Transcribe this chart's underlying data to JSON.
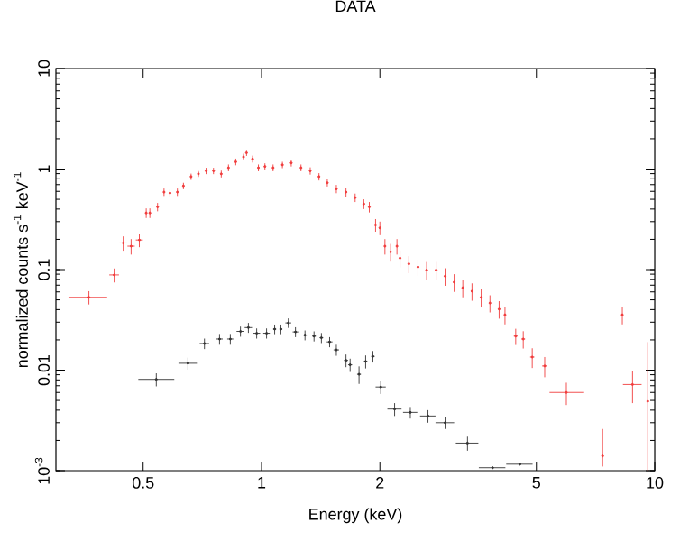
{
  "chart_data": {
    "type": "scatter",
    "title": "DATA",
    "xlabel": "Energy (keV)",
    "ylabel": "normalized counts s$^{-1}$ keV$^{-1}$",
    "log": "xy",
    "xlim": [
      0.3,
      10
    ],
    "ylim": [
      0.001,
      10
    ],
    "xticks": [
      0.5,
      1,
      2,
      5,
      10
    ],
    "yticks": [
      {
        "value": 0.001,
        "label": "10$^{-3}$"
      },
      0.01,
      0.1,
      1,
      10
    ],
    "grid": false,
    "series": [
      {
        "color": "#f03c3c",
        "x": [
          0.364,
          0.422,
          0.445,
          0.466,
          0.489,
          0.509,
          0.52,
          0.544,
          0.565,
          0.585,
          0.611,
          0.633,
          0.662,
          0.691,
          0.723,
          0.755,
          0.79,
          0.824,
          0.86,
          0.9,
          0.916,
          0.949,
          0.982,
          1.02,
          1.07,
          1.13,
          1.19,
          1.26,
          1.33,
          1.4,
          1.47,
          1.55,
          1.64,
          1.73,
          1.82,
          1.88,
          1.95,
          2.0,
          2.06,
          2.13,
          2.21,
          2.25,
          2.37,
          2.5,
          2.63,
          2.78,
          2.93,
          3.09,
          3.25,
          3.43,
          3.62,
          3.81,
          4.02,
          4.16,
          4.43,
          4.63,
          4.88,
          5.25,
          5.96,
          7.37,
          8.27,
          8.78,
          9.6
        ],
        "values": [
          0.053,
          0.0885,
          0.184,
          0.171,
          0.197,
          0.366,
          0.366,
          0.42,
          0.59,
          0.577,
          0.59,
          0.68,
          0.84,
          0.895,
          0.96,
          0.96,
          0.895,
          1.03,
          1.18,
          1.32,
          1.45,
          1.26,
          1.03,
          1.06,
          1.03,
          1.1,
          1.15,
          1.03,
          0.96,
          0.84,
          0.73,
          0.635,
          0.59,
          0.52,
          0.45,
          0.42,
          0.278,
          0.26,
          0.171,
          0.15,
          0.171,
          0.13,
          0.114,
          0.106,
          0.099,
          0.099,
          0.086,
          0.075,
          0.066,
          0.061,
          0.053,
          0.0465,
          0.0405,
          0.0355,
          0.0218,
          0.0204,
          0.0135,
          0.011,
          0.006,
          0.0014,
          0.0355,
          0.0072,
          0.0049
        ],
        "xerrors": [
          [
            0.323,
            0.405
          ],
          0.012,
          0.01,
          0.01,
          0.01,
          null,
          null,
          null,
          null,
          null,
          null,
          null,
          null,
          null,
          null,
          null,
          null,
          null,
          null,
          null,
          null,
          null,
          null,
          null,
          null,
          null,
          null,
          null,
          null,
          null,
          null,
          null,
          null,
          null,
          null,
          null,
          null,
          null,
          null,
          null,
          null,
          null,
          null,
          null,
          null,
          null,
          null,
          null,
          null,
          null,
          null,
          null,
          null,
          null,
          0.05,
          0.05,
          0.06,
          0.08,
          [
            5.4,
            6.58
          ],
          null,
          null,
          [
            8.3,
            9.26
          ],
          null
        ],
        "errors": [
          0.008,
          0.014,
          0.03,
          0.03,
          0.03,
          0.04,
          0.04,
          0.04,
          0.05,
          0.05,
          0.05,
          0.05,
          0.06,
          0.06,
          0.07,
          0.07,
          0.07,
          0.08,
          0.09,
          0.1,
          0.1,
          0.1,
          0.08,
          0.08,
          0.08,
          0.08,
          0.09,
          0.08,
          0.08,
          0.07,
          0.06,
          0.06,
          0.06,
          0.05,
          0.05,
          0.05,
          0.04,
          0.04,
          0.03,
          0.03,
          0.03,
          0.025,
          0.022,
          0.02,
          0.02,
          0.02,
          0.017,
          0.015,
          0.013,
          0.012,
          0.011,
          0.009,
          0.008,
          0.007,
          0.004,
          0.004,
          0.003,
          0.0025,
          0.0015,
          [
            0.0011,
            0.0026
          ],
          0.007,
          0.0025,
          [
            0.001,
            0.019
          ]
        ]
      },
      {
        "color": "#333333",
        "x": [
          0.54,
          0.65,
          0.716,
          0.782,
          0.833,
          0.884,
          0.926,
          0.972,
          1.03,
          1.08,
          1.12,
          1.17,
          1.22,
          1.29,
          1.36,
          1.42,
          1.49,
          1.55,
          1.64,
          1.68,
          1.77,
          1.84,
          1.92,
          2.01,
          2.18,
          2.39,
          2.65,
          2.93,
          3.34,
          3.87,
          4.54
        ],
        "values": [
          0.0081,
          0.0117,
          0.0184,
          0.0204,
          0.0204,
          0.0243,
          0.0265,
          0.0233,
          0.0233,
          0.0256,
          0.0256,
          0.0295,
          0.024,
          0.0223,
          0.0218,
          0.021,
          0.0191,
          0.0159,
          0.0125,
          0.0113,
          0.0091,
          0.0122,
          0.0137,
          0.0068,
          0.0041,
          0.0038,
          0.0035,
          0.003,
          0.00188,
          0.00107,
          0.00116
        ],
        "xerrors": [
          [
            0.486,
            0.6
          ],
          0.035,
          0.02,
          0.015,
          0.015,
          0.02,
          0.02,
          0.02,
          0.02,
          0.01,
          0.01,
          0.02,
          0.02,
          0.015,
          0.015,
          0.015,
          0.025,
          0.025,
          0.02,
          0.02,
          0.02,
          0.02,
          0.02,
          0.06,
          0.09,
          0.1,
          0.12,
          0.16,
          0.22,
          0.3,
          0.35
        ],
        "errors": [
          0.0012,
          0.0016,
          0.0022,
          0.0025,
          0.0025,
          0.0028,
          0.003,
          0.0027,
          0.0027,
          0.0028,
          0.0028,
          0.0032,
          0.0027,
          0.0025,
          0.0025,
          0.0024,
          0.0022,
          0.002,
          0.0018,
          0.0017,
          0.0018,
          0.0018,
          0.0018,
          0.001,
          0.0006,
          0.0005,
          0.0005,
          0.0004,
          0.0003,
          null,
          null
        ]
      }
    ]
  }
}
